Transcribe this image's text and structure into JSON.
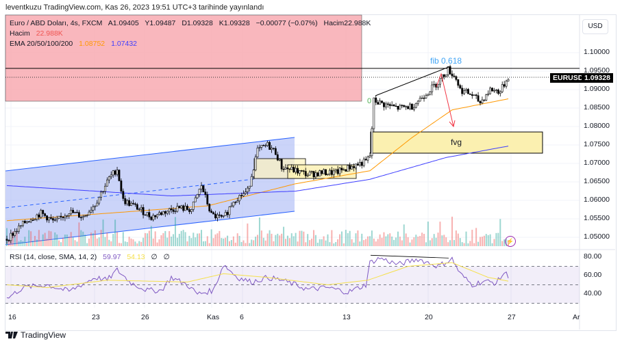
{
  "header": {
    "published": "leventkuzu TradingView.com, Kas 26, 2023 19:51 UTC+3 tarihinde yayınlandı"
  },
  "legend": {
    "symbol": "Euro / ABD Doları, 4s, FXCM",
    "open": "A1.09405",
    "high": "Y1.09487",
    "low": "D1.09328",
    "close": "K1.09328",
    "change": "−0.00077 (−0.07%)",
    "volume": "Hacim22.988K",
    "vol_label": "Hacim",
    "vol_value": "22.988K",
    "ema_label": "EMA 20/50/100/200",
    "ema1": "1.08752",
    "ema2": "1.07432",
    "rsi_label": "RSI (14, close, SMA, 14, 2)",
    "rsi_value": "59.97",
    "rsi_sma": "54.13",
    "rsi_x1": "∅",
    "rsi_x2": "∅"
  },
  "currency_button": "USD",
  "symbol_tag": "EURUSD",
  "last_price": "1.09328",
  "annotations": {
    "fib": "fib 0.618",
    "zero": "0",
    "fvg": "fvg"
  },
  "brand": "TradingView",
  "colors": {
    "up": "#26a69a",
    "down": "#ef5350",
    "ema50": "#ff9800",
    "ema200": "#3d3dff",
    "rsi": "#7e57c2",
    "rsi_sma": "#f5e04a",
    "zone": "#f8a5ad",
    "channel": "#2962ff"
  },
  "chart_data": {
    "type": "candlestick",
    "title": "Euro / ABD Doları, 4s, FXCM",
    "y_ticks": [
      "1.10000",
      "1.09500",
      "1.09000",
      "1.08500",
      "1.08000",
      "1.07500",
      "1.07000",
      "1.06500",
      "1.06000",
      "1.05500",
      "1.05000"
    ],
    "ylim": [
      1.048,
      1.1055
    ],
    "x_ticks": [
      "16",
      "23",
      "26",
      "Kas",
      "6",
      "13",
      "20",
      "27",
      "Ar"
    ],
    "close_keypoints": [
      [
        0,
        1.0495
      ],
      [
        10,
        1.0545
      ],
      [
        17,
        1.0565
      ],
      [
        24,
        1.054
      ],
      [
        31,
        1.057
      ],
      [
        38,
        1.0555
      ],
      [
        44,
        1.059
      ],
      [
        51,
        1.066
      ],
      [
        55,
        1.0685
      ],
      [
        58,
        1.06
      ],
      [
        65,
        1.058
      ],
      [
        72,
        1.0555
      ],
      [
        79,
        1.057
      ],
      [
        85,
        1.058
      ],
      [
        92,
        1.0575
      ],
      [
        97,
        1.064
      ],
      [
        102,
        1.056
      ],
      [
        108,
        1.055
      ],
      [
        113,
        1.06
      ],
      [
        120,
        1.0625
      ],
      [
        125,
        1.0735
      ],
      [
        130,
        1.075
      ],
      [
        134,
        1.073
      ],
      [
        137,
        1.069
      ],
      [
        144,
        1.068
      ],
      [
        150,
        1.067
      ],
      [
        157,
        1.0675
      ],
      [
        164,
        1.0675
      ],
      [
        171,
        1.069
      ],
      [
        179,
        1.0705
      ],
      [
        181,
        1.072
      ],
      [
        183,
        1.087
      ],
      [
        188,
        1.086
      ],
      [
        195,
        1.085
      ],
      [
        202,
        1.0855
      ],
      [
        209,
        1.089
      ],
      [
        215,
        1.092
      ],
      [
        220,
        1.0955
      ],
      [
        224,
        1.093
      ],
      [
        226,
        1.09
      ],
      [
        232,
        1.0885
      ],
      [
        236,
        1.0865
      ],
      [
        241,
        1.09
      ],
      [
        246,
        1.0895
      ],
      [
        250,
        1.0935
      ]
    ],
    "ema50_keypoints": [
      [
        0,
        1.0545
      ],
      [
        100,
        1.0585
      ],
      [
        144,
        1.0645
      ],
      [
        181,
        1.068
      ],
      [
        202,
        1.077
      ],
      [
        222,
        1.0845
      ],
      [
        250,
        1.0875
      ]
    ],
    "ema200_keypoints": [
      [
        0,
        1.064
      ],
      [
        82,
        1.0612
      ],
      [
        144,
        1.0625
      ],
      [
        181,
        1.0657
      ],
      [
        219,
        1.0716
      ],
      [
        250,
        1.0747
      ]
    ],
    "rsi": {
      "levels": [
        70,
        50,
        30
      ],
      "ticks": [
        "80.00",
        "60.00",
        "40.00"
      ],
      "ylim": [
        25,
        82
      ],
      "keypoints": [
        [
          0,
          35
        ],
        [
          8,
          47
        ],
        [
          20,
          50
        ],
        [
          31,
          43
        ],
        [
          44,
          58
        ],
        [
          50,
          55
        ],
        [
          55,
          66
        ],
        [
          62,
          52
        ],
        [
          70,
          44
        ],
        [
          77,
          44
        ],
        [
          82,
          58
        ],
        [
          90,
          50
        ],
        [
          95,
          40
        ],
        [
          103,
          44
        ],
        [
          108,
          72
        ],
        [
          115,
          58
        ],
        [
          122,
          53
        ],
        [
          130,
          58
        ],
        [
          137,
          55
        ],
        [
          144,
          50
        ],
        [
          150,
          45
        ],
        [
          160,
          47
        ],
        [
          170,
          42
        ],
        [
          179,
          50
        ],
        [
          181,
          74
        ],
        [
          186,
          79
        ],
        [
          195,
          72
        ],
        [
          205,
          78
        ],
        [
          215,
          70
        ],
        [
          222,
          78
        ],
        [
          226,
          62
        ],
        [
          232,
          50
        ],
        [
          238,
          54
        ],
        [
          244,
          52
        ],
        [
          248,
          63
        ],
        [
          250,
          60
        ]
      ],
      "sma_keypoints": [
        [
          0,
          50
        ],
        [
          20,
          47
        ],
        [
          50,
          55
        ],
        [
          90,
          53
        ],
        [
          108,
          62
        ],
        [
          130,
          58
        ],
        [
          160,
          50
        ],
        [
          180,
          55
        ],
        [
          200,
          70
        ],
        [
          222,
          74
        ],
        [
          240,
          58
        ],
        [
          250,
          54
        ]
      ]
    }
  }
}
